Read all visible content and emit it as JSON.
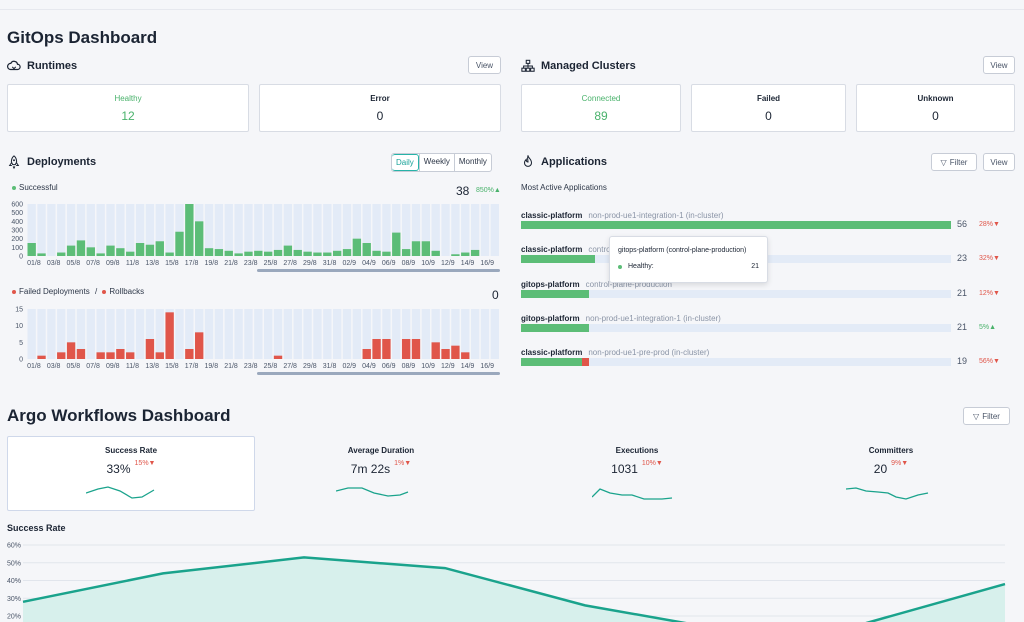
{
  "gitops": {
    "title": "GitOps Dashboard",
    "runtimes": {
      "title": "Runtimes",
      "view_label": "View",
      "cards": [
        {
          "label": "Healthy",
          "value": "12"
        },
        {
          "label": "Error",
          "value": "0"
        }
      ]
    },
    "clusters": {
      "title": "Managed Clusters",
      "view_label": "View",
      "cards": [
        {
          "label": "Connected",
          "value": "89"
        },
        {
          "label": "Failed",
          "value": "0"
        },
        {
          "label": "Unknown",
          "value": "0"
        }
      ]
    },
    "deployments": {
      "title": "Deployments",
      "tabs": [
        "Daily",
        "Weekly",
        "Monthly"
      ],
      "active_tab": "Daily",
      "successful_label": "Successful",
      "successful_total": "38",
      "successful_change": "850%",
      "failed_label": "Failed Deployments",
      "separator": "/",
      "rollbacks_label": "Rollbacks",
      "failed_total": "0",
      "success_color": "#5cbd77",
      "fail_color": "#e0564a"
    },
    "applications": {
      "title": "Applications",
      "filter_label": "Filter",
      "view_label": "View",
      "subtitle": "Most Active Applications",
      "rows": [
        {
          "name": "classic-platform",
          "ns": "non-prod-ue1-integration-1 (in-cluster)",
          "count": "56",
          "change": "28%",
          "dir": "down"
        },
        {
          "name": "classic-platform",
          "ns": "control-plane-production",
          "count": "23",
          "change": "32%",
          "dir": "down"
        },
        {
          "name": "gitops-platform",
          "ns": "control-plane-production",
          "count": "21",
          "change": "12%",
          "dir": "down"
        },
        {
          "name": "gitops-platform",
          "ns": "non-prod-ue1-integration-1 (in-cluster)",
          "count": "21",
          "change": "5%",
          "dir": "up"
        },
        {
          "name": "classic-platform",
          "ns": "non-prod-ue1-pre-prod (in-cluster)",
          "count": "19",
          "change": "56%",
          "dir": "down"
        }
      ],
      "tooltip": {
        "title": "gitops-platform (control-plane-production)",
        "label": "Healthy:",
        "value": "21"
      }
    }
  },
  "argo": {
    "title": "Argo Workflows Dashboard",
    "filter_label": "Filter",
    "metrics": [
      {
        "title": "Success Rate",
        "value": "33%",
        "change": "15%"
      },
      {
        "title": "Average Duration",
        "value": "7m 22s",
        "change": "1%"
      },
      {
        "title": "Executions",
        "value": "1031",
        "change": "10%"
      },
      {
        "title": "Committers",
        "value": "20",
        "change": "9%"
      }
    ],
    "success_rate_title": "Success Rate",
    "accent": "#1aa38c"
  },
  "chart_data": [
    {
      "type": "bar",
      "title": "Successful",
      "ylim": [
        0,
        600
      ],
      "yticks": [
        "600",
        "500",
        "400",
        "300",
        "200",
        "100",
        "0"
      ],
      "x_tick_labels": [
        "01/8",
        "03/8",
        "05/8",
        "07/8",
        "09/8",
        "11/8",
        "13/8",
        "15/8",
        "17/8",
        "19/8",
        "21/8",
        "23/8",
        "25/8",
        "27/8",
        "29/8",
        "31/8",
        "02/9",
        "04/9",
        "06/9",
        "08/9",
        "10/9",
        "12/9",
        "14/9",
        "16/9"
      ],
      "values": [
        150,
        30,
        0,
        40,
        120,
        180,
        100,
        30,
        120,
        90,
        50,
        150,
        130,
        170,
        40,
        280,
        600,
        400,
        90,
        80,
        60,
        30,
        50,
        60,
        50,
        70,
        120,
        70,
        50,
        40,
        40,
        60,
        80,
        200,
        150,
        60,
        50,
        270,
        80,
        170,
        170,
        60,
        0,
        20,
        40,
        70,
        0,
        0
      ]
    },
    {
      "type": "bar",
      "title": "Failed Deployments / Rollbacks",
      "ylim": [
        0,
        15
      ],
      "yticks": [
        "15",
        "10",
        "5",
        "0"
      ],
      "x_tick_labels": [
        "01/8",
        "03/8",
        "05/8",
        "07/8",
        "09/8",
        "11/8",
        "13/8",
        "15/8",
        "17/8",
        "19/8",
        "21/8",
        "23/8",
        "25/8",
        "27/8",
        "29/8",
        "31/8",
        "02/9",
        "04/9",
        "06/9",
        "08/9",
        "10/9",
        "12/9",
        "14/9",
        "16/9"
      ],
      "values": [
        0,
        1,
        0,
        2,
        5,
        3,
        0,
        2,
        2,
        3,
        2,
        0,
        6,
        2,
        14,
        0,
        3,
        8,
        0,
        0,
        0,
        0,
        0,
        0,
        0,
        1,
        0,
        0,
        0,
        0,
        0,
        0,
        0,
        0,
        3,
        6,
        6,
        0,
        6,
        6,
        0,
        5,
        3,
        4,
        2,
        0,
        0,
        0
      ]
    },
    {
      "type": "area",
      "title": "Success Rate",
      "ylim": [
        0,
        60
      ],
      "yticks": [
        "60%",
        "50%",
        "40%",
        "30%",
        "20%"
      ],
      "values": [
        28,
        44,
        53,
        47,
        26,
        12,
        16,
        38
      ]
    }
  ]
}
